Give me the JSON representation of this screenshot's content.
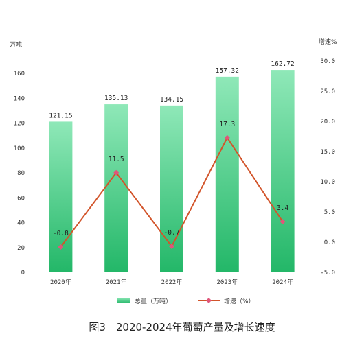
{
  "chart_data": {
    "type": "bar",
    "categories": [
      "2020年",
      "2021年",
      "2022年",
      "2023年",
      "2024年"
    ],
    "series": [
      {
        "name": "总量（万吨）",
        "type": "bar",
        "axis": "left",
        "values": [
          121.15,
          135.13,
          134.15,
          157.32,
          162.72
        ],
        "labels": [
          "121.15",
          "135.13",
          "134.15",
          "157.32",
          "162.72"
        ]
      },
      {
        "name": "增速（%）",
        "type": "line",
        "axis": "right",
        "values": [
          -0.8,
          11.5,
          -0.7,
          17.3,
          3.4
        ],
        "labels": [
          "-0.8",
          "11.5",
          "-0.7",
          "17.3",
          "3.4"
        ]
      }
    ],
    "y_left": {
      "unit": "万吨",
      "range": [
        0,
        160
      ],
      "ticks": [
        "0",
        "20",
        "40",
        "60",
        "80",
        "100",
        "120",
        "140",
        "160"
      ]
    },
    "y_right": {
      "unit": "增速%",
      "range": [
        -5,
        30
      ],
      "ticks": [
        "-5.0",
        "0.0",
        "5.0",
        "10.0",
        "15.0",
        "20.0",
        "25.0",
        "30.0"
      ]
    },
    "title": "图3　2020-2024年葡萄产量及增长速度",
    "grid": false,
    "legend_position": "bottom",
    "colors": {
      "bar_top": "#8fe8b8",
      "bar_bottom": "#23b768",
      "line": "#d2542a",
      "marker": "#e0567a"
    }
  }
}
